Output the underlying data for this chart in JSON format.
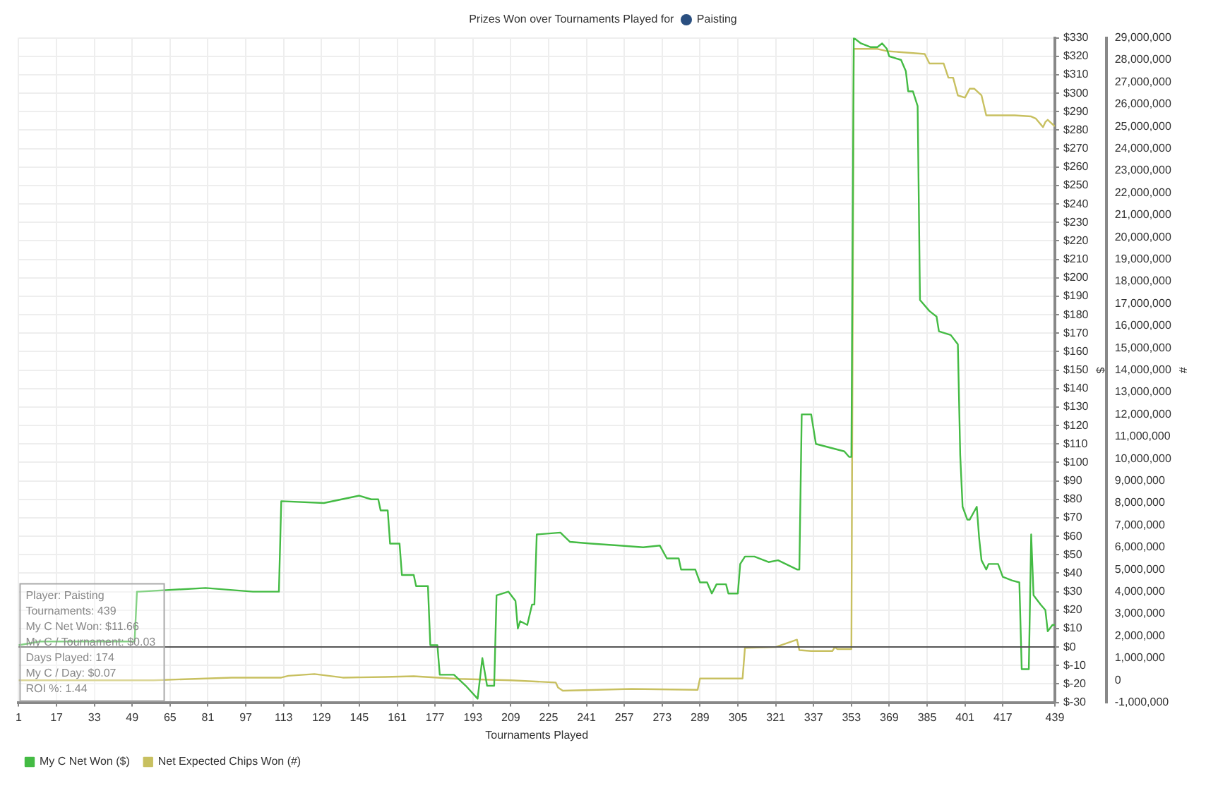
{
  "chart_data": {
    "type": "line",
    "title": "Prizes Won over Tournaments Played for Paisting",
    "xlabel": "Tournaments Played",
    "ylabel": "$",
    "y2label": "#",
    "xlim": [
      1,
      439
    ],
    "xticks": [
      1,
      17,
      33,
      49,
      65,
      81,
      97,
      113,
      129,
      145,
      161,
      177,
      193,
      209,
      225,
      241,
      257,
      273,
      289,
      305,
      321,
      337,
      353,
      369,
      385,
      401,
      417,
      439
    ],
    "ylim": [
      -30,
      330
    ],
    "yticks": [
      {
        "value": -30,
        "label": "$-30"
      },
      {
        "value": -20,
        "label": "$-20"
      },
      {
        "value": -10,
        "label": "$-10"
      },
      {
        "value": 0,
        "label": "$0"
      },
      {
        "value": 10,
        "label": "$10"
      },
      {
        "value": 20,
        "label": "$20"
      },
      {
        "value": 30,
        "label": "$30"
      },
      {
        "value": 40,
        "label": "$40"
      },
      {
        "value": 50,
        "label": "$50"
      },
      {
        "value": 60,
        "label": "$60"
      },
      {
        "value": 70,
        "label": "$70"
      },
      {
        "value": 80,
        "label": "$80"
      },
      {
        "value": 90,
        "label": "$90"
      },
      {
        "value": 100,
        "label": "$100"
      },
      {
        "value": 110,
        "label": "$110"
      },
      {
        "value": 120,
        "label": "$120"
      },
      {
        "value": 130,
        "label": "$130"
      },
      {
        "value": 140,
        "label": "$140"
      },
      {
        "value": 150,
        "label": "$150"
      },
      {
        "value": 160,
        "label": "$160"
      },
      {
        "value": 170,
        "label": "$170"
      },
      {
        "value": 180,
        "label": "$180"
      },
      {
        "value": 190,
        "label": "$190"
      },
      {
        "value": 200,
        "label": "$200"
      },
      {
        "value": 210,
        "label": "$210"
      },
      {
        "value": 220,
        "label": "$220"
      },
      {
        "value": 230,
        "label": "$230"
      },
      {
        "value": 240,
        "label": "$240"
      },
      {
        "value": 250,
        "label": "$250"
      },
      {
        "value": 260,
        "label": "$260"
      },
      {
        "value": 270,
        "label": "$270"
      },
      {
        "value": 280,
        "label": "$280"
      },
      {
        "value": 290,
        "label": "$290"
      },
      {
        "value": 300,
        "label": "$300"
      },
      {
        "value": 310,
        "label": "$310"
      },
      {
        "value": 320,
        "label": "$320"
      },
      {
        "value": 330,
        "label": "$330"
      }
    ],
    "y2lim": [
      -1000000,
      29000000
    ],
    "y2ticks": [
      {
        "value": -1000000,
        "label": "-1,000,000"
      },
      0,
      {
        "value": 1000000,
        "label": "1,000,000"
      },
      {
        "value": 2000000,
        "label": "2,000,000"
      },
      {
        "value": 3000000,
        "label": "3,000,000"
      },
      {
        "value": 4000000,
        "label": "4,000,000"
      },
      {
        "value": 5000000,
        "label": "5,000,000"
      },
      {
        "value": 6000000,
        "label": "6,000,000"
      },
      {
        "value": 7000000,
        "label": "7,000,000"
      },
      {
        "value": 8000000,
        "label": "8,000,000"
      },
      {
        "value": 9000000,
        "label": "9,000,000"
      },
      {
        "value": 10000000,
        "label": "10,000,000"
      },
      {
        "value": 11000000,
        "label": "11,000,000"
      },
      {
        "value": 12000000,
        "label": "12,000,000"
      },
      {
        "value": 13000000,
        "label": "13,000,000"
      },
      {
        "value": 14000000,
        "label": "14,000,000"
      },
      {
        "value": 15000000,
        "label": "15,000,000"
      },
      {
        "value": 16000000,
        "label": "16,000,000"
      },
      {
        "value": 17000000,
        "label": "17,000,000"
      },
      {
        "value": 18000000,
        "label": "18,000,000"
      },
      {
        "value": 19000000,
        "label": "19,000,000"
      },
      {
        "value": 20000000,
        "label": "20,000,000"
      },
      {
        "value": 21000000,
        "label": "21,000,000"
      },
      {
        "value": 22000000,
        "label": "22,000,000"
      },
      {
        "value": 23000000,
        "label": "23,000,000"
      },
      {
        "value": 24000000,
        "label": "24,000,000"
      },
      {
        "value": 25000000,
        "label": "25,000,000"
      },
      {
        "value": 26000000,
        "label": "26,000,000"
      },
      {
        "value": 27000000,
        "label": "27,000,000"
      },
      {
        "value": 28000000,
        "label": "28,000,000"
      },
      {
        "value": 29000000,
        "label": "29,000,000"
      }
    ],
    "grid": true,
    "legend": "bottom left",
    "marker": "none",
    "line_style": "solid",
    "ref_lines": [
      {
        "axis": "y",
        "value": 0,
        "color": "#555555"
      }
    ],
    "annotations": [
      "Player: Paisting",
      "Tournaments: 439",
      "My C Net Won: $11.66",
      "My C / Tournament: $0.03",
      "Days Played: 174",
      "My C / Day: $0.07",
      "ROI %: 1.44"
    ],
    "series": [
      {
        "name": "My C Net Won ($)",
        "color": "#44bb44",
        "x": [
          1,
          10,
          30,
          50,
          51,
          52,
          80,
          100,
          105,
          111,
          112,
          130,
          145,
          150,
          153,
          154,
          157,
          158,
          162,
          163,
          168,
          169,
          174,
          175,
          178,
          179,
          185,
          190,
          195,
          197,
          199,
          202,
          203,
          208,
          211,
          212,
          213,
          216,
          218,
          219,
          220,
          230,
          234,
          243,
          255,
          265,
          272,
          275,
          280,
          281,
          287,
          289,
          292,
          294,
          296,
          300,
          301,
          305,
          306,
          308,
          312,
          318,
          322,
          330,
          331,
          332,
          336,
          338,
          350,
          352,
          353,
          354,
          357,
          361,
          364,
          366,
          368,
          369,
          374,
          376,
          377,
          379,
          381,
          382,
          386,
          389,
          390,
          395,
          398,
          399,
          400,
          402,
          403,
          406,
          407,
          408,
          410,
          411,
          415,
          417,
          421,
          424,
          425,
          428,
          429,
          430,
          433,
          435,
          436,
          438,
          439
        ],
        "values": [
          1,
          3,
          3,
          3,
          30,
          30,
          32,
          30,
          30,
          30,
          79,
          78,
          82,
          80,
          80,
          74,
          74,
          56,
          56,
          39,
          39,
          33,
          33,
          1,
          1,
          -15,
          -15,
          -21,
          -28,
          -6,
          -21,
          -21,
          28,
          30,
          25,
          10,
          14,
          12,
          23,
          23,
          61,
          62,
          57,
          56,
          55,
          54,
          55,
          48,
          48,
          42,
          42,
          35,
          35,
          29,
          34,
          34,
          29,
          29,
          45,
          49,
          49,
          46,
          47,
          42,
          42,
          126,
          126,
          110,
          106,
          103,
          103,
          330,
          327,
          325,
          325,
          327,
          324,
          320,
          318,
          312,
          301,
          301,
          293,
          188,
          182,
          179,
          171,
          169,
          164,
          104,
          76,
          69,
          69,
          76,
          59,
          47,
          42,
          45,
          45,
          38,
          36,
          35,
          -12,
          -12,
          61,
          28,
          23,
          20,
          8.5,
          12,
          12
        ]
      },
      {
        "name": "Net Expected Chips Won (#)",
        "color": "#c8c060",
        "axis": "y2",
        "x": [
          1,
          58,
          91,
          112,
          115,
          126,
          138,
          156,
          168,
          187,
          209,
          228,
          229,
          231,
          260,
          288,
          289,
          307,
          308,
          321,
          330,
          331,
          336,
          345,
          346,
          347,
          352,
          353,
          354,
          364,
          368,
          384,
          386,
          392,
          394,
          396,
          398,
          401,
          403,
          405,
          408,
          410,
          422,
          429,
          431,
          434,
          435,
          436,
          439
        ],
        "values": [
          0,
          0,
          120000,
          120000,
          200000,
          280000,
          120000,
          150000,
          180000,
          60000,
          0,
          -100000,
          -330000,
          -470000,
          -390000,
          -430000,
          80000,
          80000,
          1460000,
          1500000,
          1830000,
          1360000,
          1320000,
          1320000,
          1500000,
          1410000,
          1410000,
          1410000,
          28500000,
          28500000,
          28400000,
          28270000,
          27840000,
          27840000,
          27200000,
          27200000,
          26400000,
          26300000,
          26700000,
          26700000,
          26400000,
          25500000,
          25500000,
          25450000,
          25350000,
          24970000,
          25200000,
          25300000,
          25000000
        ]
      }
    ]
  }
}
